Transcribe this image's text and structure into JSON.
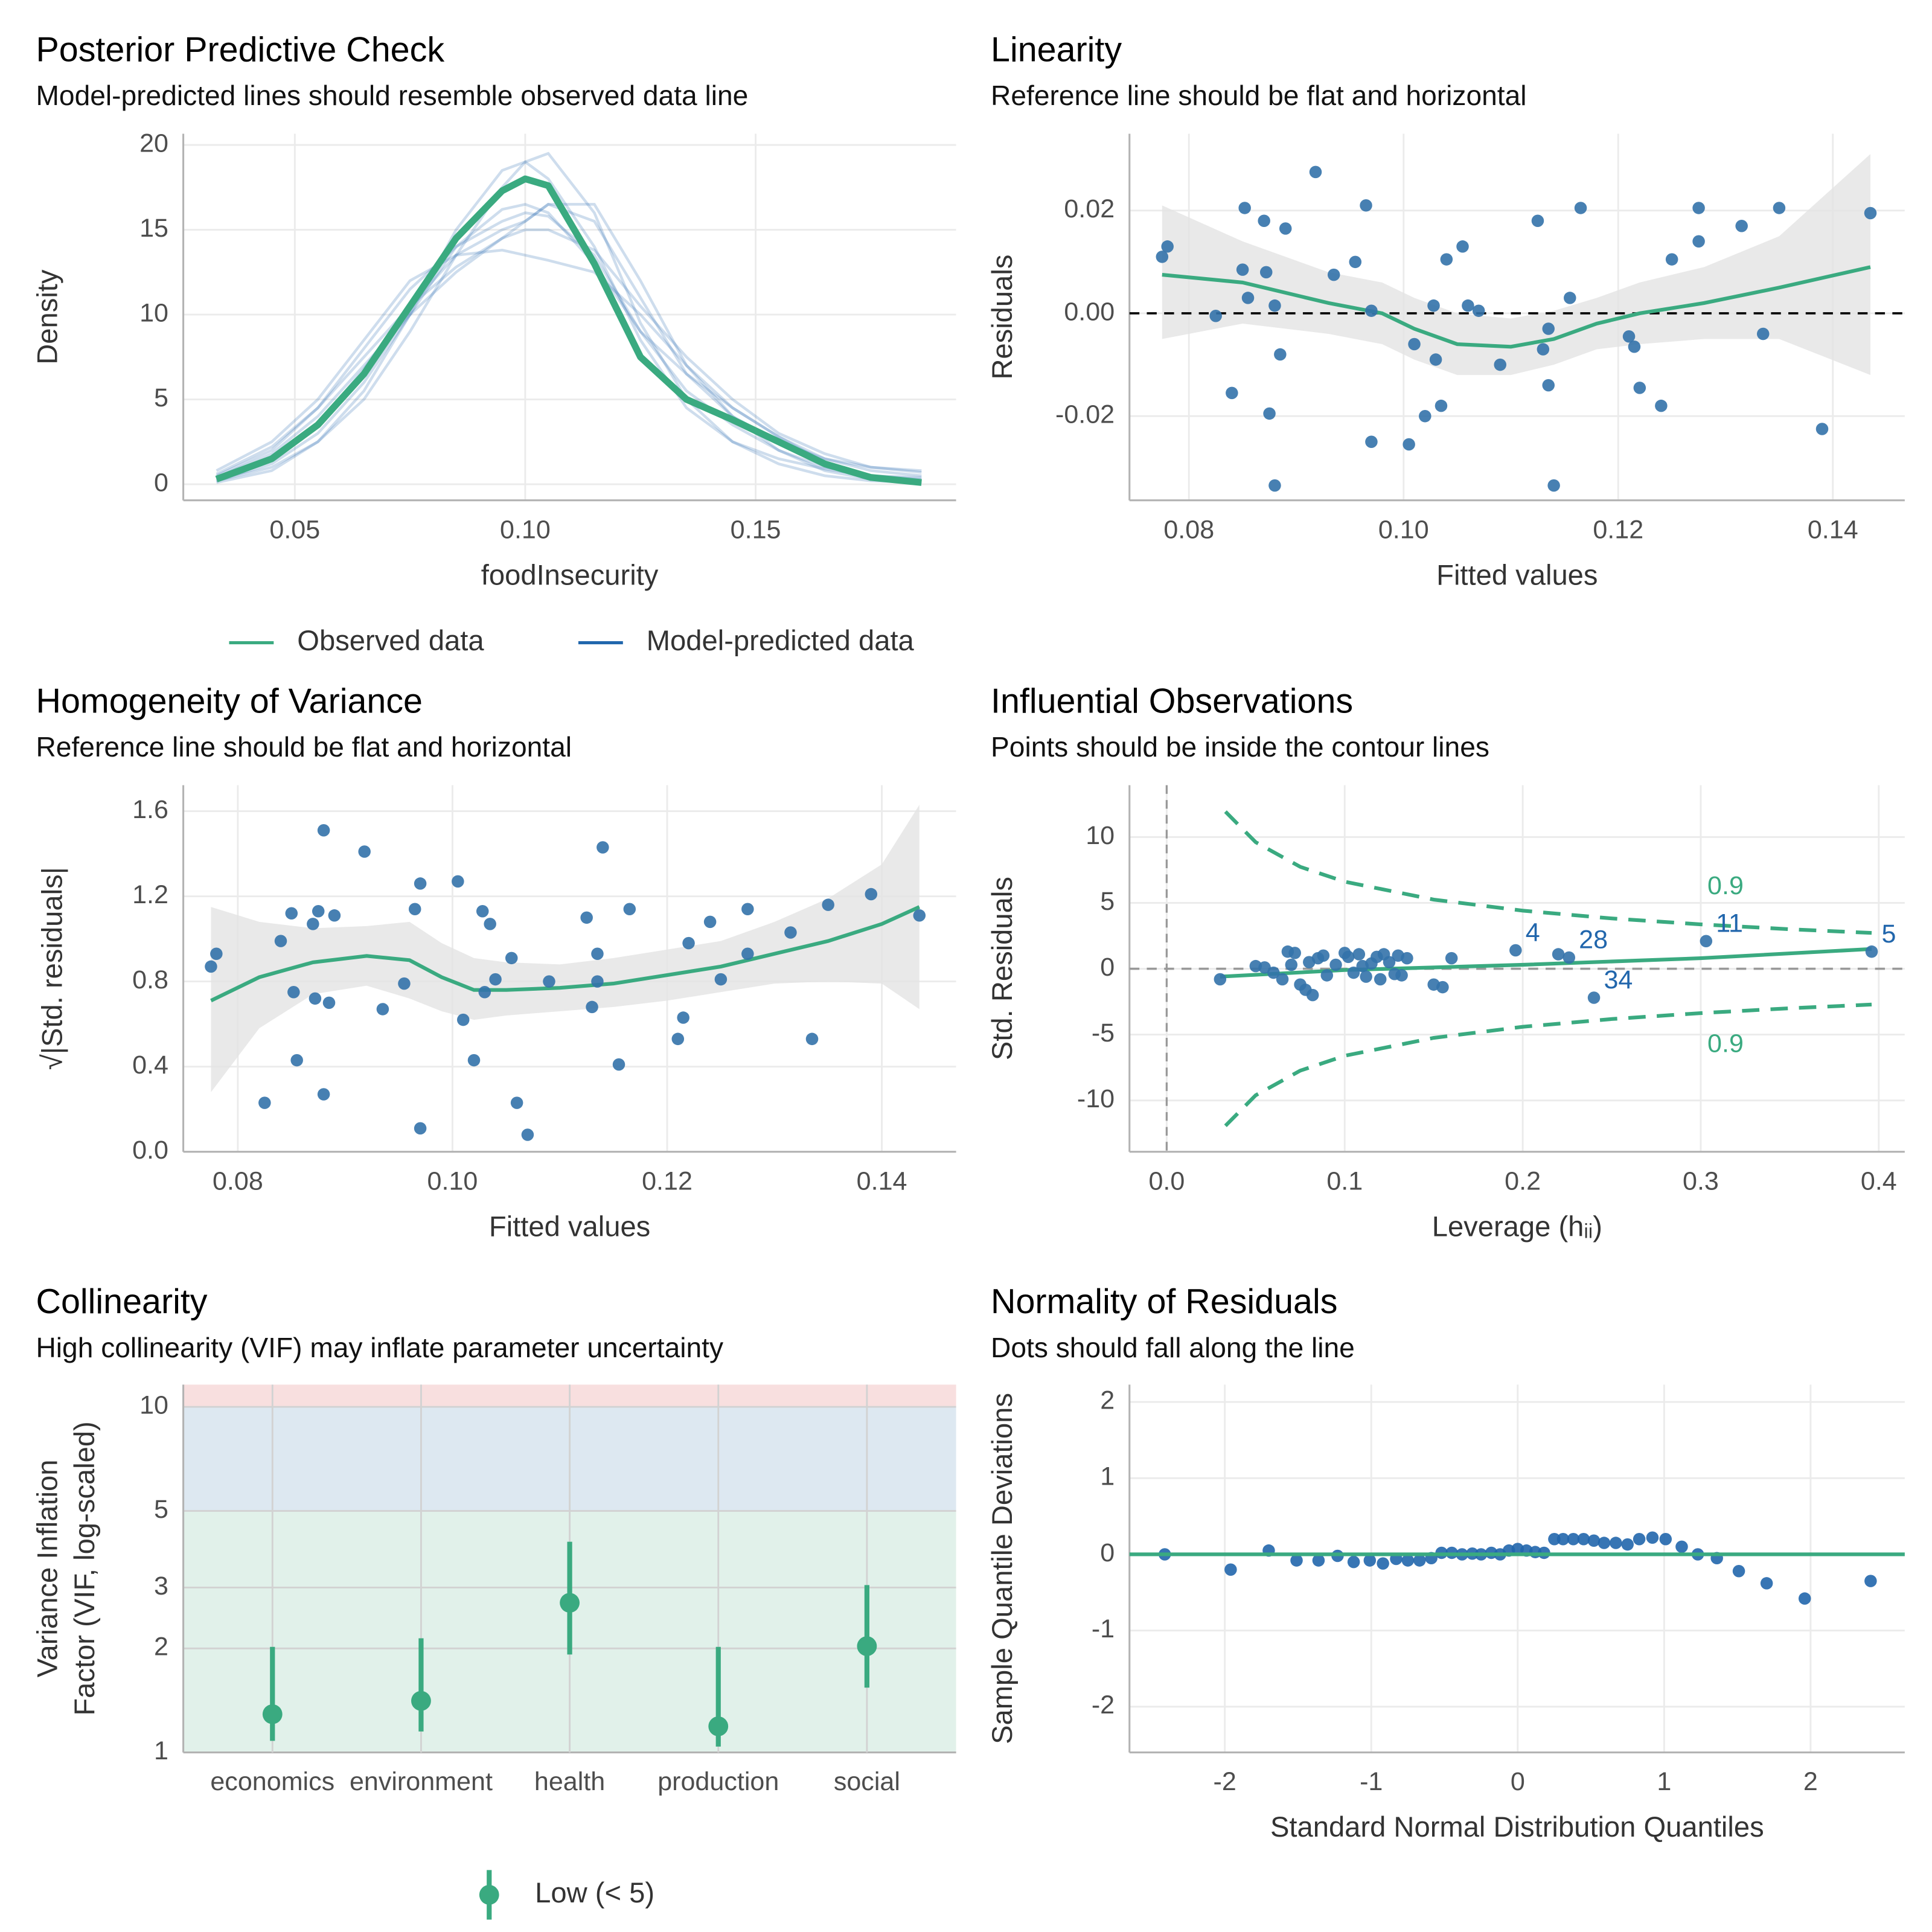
{
  "chart_data": [
    {
      "type": "density",
      "title": "Posterior Predictive Check",
      "subtitle": "Model-predicted lines should resemble observed data line",
      "xlabel": "foodInsecurity",
      "ylabel": "Density",
      "x": [
        0.033,
        0.045,
        0.055,
        0.065,
        0.075,
        0.085,
        0.095,
        0.1,
        0.105,
        0.115,
        0.125,
        0.135,
        0.145,
        0.155,
        0.165,
        0.175,
        0.186
      ],
      "series": [
        {
          "name": "Observed data",
          "color": "#3aaa80",
          "values": [
            0.3,
            1.5,
            3.5,
            6.5,
            10.5,
            14.5,
            17.3,
            18.0,
            17.6,
            13.0,
            7.5,
            5.0,
            3.8,
            2.5,
            1.2,
            0.4,
            0.1
          ]
        },
        {
          "name": "Model-predicted data",
          "color": "#2166ac",
          "draws": [
            [
              0.5,
              2,
              4.5,
              8,
              11.5,
              14,
              15.5,
              16,
              15.8,
              13.5,
              9,
              5.5,
              3.5,
              2,
              1,
              0.5,
              0.3
            ],
            [
              0.2,
              1,
              2.5,
              5,
              9,
              13.5,
              17.5,
              19,
              19.5,
              16,
              9.5,
              5,
              2.5,
              1.2,
              0.5,
              0.2,
              0.1
            ],
            [
              0.8,
              2.5,
              5,
              8.5,
              12,
              13.5,
              13.8,
              13.5,
              13.2,
              12.5,
              10,
              7,
              4.5,
              2.8,
              1.5,
              0.8,
              0.5
            ],
            [
              0.3,
              1.5,
              3.5,
              6.8,
              10.5,
              13.5,
              15,
              15.5,
              16.5,
              16.5,
              12,
              7,
              4,
              2,
              0.8,
              0.3,
              0.1
            ],
            [
              0.6,
              2.2,
              4.5,
              7.5,
              10.5,
              12.8,
              14.5,
              15,
              15,
              13.8,
              10.5,
              7.5,
              5,
              3,
              1.8,
              1,
              0.8
            ],
            [
              0.1,
              0.8,
              2.5,
              5.5,
              10,
              15,
              18.5,
              19,
              18,
              14,
              8.5,
              4.5,
              2.5,
              1.5,
              0.9,
              0.5,
              0.4
            ],
            [
              0.4,
              1.8,
              4,
              7,
              10,
              12.5,
              14.5,
              15.5,
              16.5,
              15.5,
              11,
              6.5,
              4,
              2.5,
              1.5,
              1,
              0.7
            ],
            [
              0.2,
              1.2,
              3,
              6,
              10,
              14,
              16.2,
              16.5,
              16,
              13,
              9,
              6.5,
              4.5,
              2.8,
              1.3,
              0.5,
              0.2
            ]
          ]
        }
      ],
      "xlim": [
        0.0258,
        0.1935
      ],
      "xticks": [
        0.05,
        {
          "value": 0.1,
          "label": "0.10"
        },
        0.15
      ],
      "ylim": [
        -0.95,
        20.66
      ],
      "yticks": [
        0,
        5,
        10,
        15,
        20
      ],
      "grid": true,
      "legend": "bottom"
    },
    {
      "type": "scatter_smooth",
      "title": "Linearity",
      "subtitle": "Reference line should be flat and horizontal",
      "xlabel": "Fitted values",
      "ylabel": "Residuals",
      "x": [
        0.0775,
        0.078,
        0.0825,
        0.084,
        0.085,
        0.0852,
        0.0855,
        0.087,
        0.0872,
        0.0875,
        0.088,
        0.088,
        0.0885,
        0.089,
        0.0918,
        0.0935,
        0.0955,
        0.0965,
        0.097,
        0.097,
        0.1005,
        0.101,
        0.102,
        0.1028,
        0.103,
        0.1035,
        0.104,
        0.1055,
        0.106,
        0.107,
        0.109,
        0.1125,
        0.113,
        0.1135,
        0.1135,
        0.114,
        0.1155,
        0.1165,
        0.121,
        0.1215,
        0.122,
        0.124,
        0.125,
        0.1275,
        0.1275,
        0.1315,
        0.1335,
        0.135,
        0.139,
        0.1435
      ],
      "values": [
        0.011,
        0.013,
        -0.0005,
        -0.0155,
        0.0085,
        0.0205,
        0.003,
        0.018,
        0.008,
        -0.0195,
        0.0015,
        -0.0335,
        -0.008,
        0.0165,
        0.0275,
        0.0075,
        0.01,
        0.021,
        0.0005,
        -0.025,
        -0.0255,
        -0.006,
        -0.02,
        0.0015,
        -0.009,
        -0.018,
        0.0105,
        0.013,
        0.0015,
        0.0005,
        -0.01,
        0.018,
        -0.007,
        -0.014,
        -0.003,
        -0.0335,
        0.003,
        0.0205,
        -0.0045,
        -0.0065,
        -0.0145,
        -0.018,
        0.0105,
        0.0205,
        0.014,
        0.017,
        -0.004,
        0.0205,
        -0.0225,
        0.0195
      ],
      "smooth_x": [
        0.0775,
        0.085,
        0.093,
        0.098,
        0.101,
        0.105,
        0.11,
        0.114,
        0.118,
        0.122,
        0.128,
        0.135,
        0.1435
      ],
      "smooth_values": [
        0.0075,
        0.006,
        0.002,
        0.0,
        -0.003,
        -0.006,
        -0.0065,
        -0.005,
        -0.002,
        0.0,
        0.002,
        0.005,
        0.009
      ],
      "smooth_upper": [
        0.021,
        0.014,
        0.008,
        0.006,
        0.003,
        0.0,
        -0.001,
        0.0005,
        0.003,
        0.006,
        0.009,
        0.015,
        0.031
      ],
      "smooth_lower": [
        -0.005,
        -0.002,
        -0.004,
        -0.006,
        -0.009,
        -0.012,
        -0.012,
        -0.01,
        -0.007,
        -0.006,
        -0.005,
        -0.005,
        -0.012
      ],
      "hline": 0,
      "hline_style": "dashed",
      "hline_color": "#000000",
      "point_color": "#3372aa",
      "line_color": "#3aaa80",
      "ribbon_color": "#e3e3e3",
      "xlim": [
        0.07446,
        0.1467
      ],
      "xticks": [
        0.08,
        {
          "value": 0.1,
          "label": "0.10"
        },
        0.12,
        0.14
      ],
      "ylim": [
        -0.03639,
        0.03494
      ],
      "yticks": [
        -0.02,
        {
          "value": 0,
          "label": "0.00"
        },
        0.02
      ],
      "grid": true
    },
    {
      "type": "scatter_smooth",
      "title": "Homogeneity of Variance",
      "subtitle": "Reference line should be flat and horizontal",
      "xlabel": "Fitted values",
      "ylabel": "√|Std. residuals|",
      "x": [
        0.0775,
        0.078,
        0.0825,
        0.084,
        0.085,
        0.0852,
        0.0855,
        0.087,
        0.0872,
        0.0875,
        0.088,
        0.088,
        0.0885,
        0.089,
        0.0918,
        0.0935,
        0.0955,
        0.0965,
        0.097,
        0.097,
        0.1005,
        0.101,
        0.102,
        0.1028,
        0.103,
        0.1035,
        0.104,
        0.1055,
        0.106,
        0.107,
        0.109,
        0.1125,
        0.113,
        0.1135,
        0.1135,
        0.114,
        0.1155,
        0.1165,
        0.121,
        0.1215,
        0.122,
        0.124,
        0.125,
        0.1275,
        0.1275,
        0.1315,
        0.1335,
        0.135,
        0.139,
        0.1435
      ],
      "values": [
        0.87,
        0.93,
        0.23,
        0.99,
        1.12,
        0.75,
        0.43,
        1.07,
        0.72,
        1.13,
        0.27,
        1.51,
        0.7,
        1.11,
        1.41,
        0.67,
        0.79,
        1.14,
        0.11,
        1.26,
        1.27,
        0.62,
        0.43,
        1.13,
        0.75,
        1.07,
        0.81,
        0.91,
        0.23,
        0.08,
        0.8,
        1.1,
        0.68,
        0.93,
        0.8,
        1.43,
        0.41,
        1.14,
        0.53,
        0.63,
        0.98,
        1.08,
        0.81,
        1.14,
        0.93,
        1.03,
        0.53,
        1.16,
        1.21,
        1.11
      ],
      "smooth_x": [
        0.0775,
        0.082,
        0.087,
        0.092,
        0.096,
        0.099,
        0.102,
        0.105,
        0.11,
        0.115,
        0.12,
        0.125,
        0.13,
        0.135,
        0.14,
        0.1435
      ],
      "smooth_values": [
        0.71,
        0.82,
        0.89,
        0.92,
        0.9,
        0.82,
        0.76,
        0.76,
        0.77,
        0.79,
        0.83,
        0.87,
        0.93,
        0.99,
        1.07,
        1.15
      ],
      "smooth_upper": [
        1.15,
        1.08,
        1.05,
        1.06,
        1.08,
        0.98,
        0.91,
        0.89,
        0.88,
        0.91,
        0.95,
        0.99,
        1.08,
        1.19,
        1.35,
        1.63
      ],
      "smooth_lower": [
        0.28,
        0.58,
        0.74,
        0.78,
        0.72,
        0.66,
        0.62,
        0.64,
        0.66,
        0.68,
        0.71,
        0.75,
        0.79,
        0.8,
        0.79,
        0.67
      ],
      "point_color": "#3372aa",
      "line_color": "#3aaa80",
      "ribbon_color": "#e3e3e3",
      "xlim": [
        0.07492,
        0.14692
      ],
      "xticks": [
        0.08,
        {
          "value": 0.1,
          "label": "0.10"
        },
        0.12,
        0.14
      ],
      "ylim": [
        0,
        1.722
      ],
      "yticks": [
        {
          "value": 0,
          "label": "0.0"
        },
        0.4,
        0.8,
        1.2,
        1.6
      ],
      "grid": true
    },
    {
      "type": "leverage",
      "title": "Influential Observations",
      "subtitle": "Points should be inside the contour lines",
      "xlabel": "Leverage (hᵢᵢ)",
      "ylabel": "Std. Residuals",
      "x": [
        0.03,
        0.05,
        0.055,
        0.06,
        0.065,
        0.068,
        0.07,
        0.072,
        0.075,
        0.078,
        0.08,
        0.082,
        0.085,
        0.088,
        0.09,
        0.095,
        0.1,
        0.102,
        0.105,
        0.108,
        0.11,
        0.112,
        0.115,
        0.118,
        0.12,
        0.122,
        0.125,
        0.128,
        0.13,
        0.132,
        0.135,
        0.15,
        0.155,
        0.16,
        0.196,
        0.22,
        0.226,
        0.24,
        0.303,
        0.396
      ],
      "values": [
        -0.8,
        0.2,
        0.1,
        -0.3,
        -0.8,
        1.3,
        0.3,
        1.2,
        -1.2,
        -1.6,
        0.5,
        -2.0,
        0.8,
        1.0,
        -0.5,
        0.3,
        1.2,
        0.9,
        -0.3,
        1.1,
        0.2,
        -0.6,
        0.4,
        0.9,
        -0.8,
        1.1,
        0.5,
        -0.4,
        1.0,
        -0.5,
        0.8,
        -1.2,
        -1.4,
        0.8,
        1.4,
        1.1,
        0.85,
        -2.2,
        2.1,
        1.3
      ],
      "labels": [
        null,
        null,
        null,
        null,
        null,
        null,
        null,
        null,
        null,
        null,
        null,
        null,
        null,
        null,
        null,
        null,
        null,
        null,
        null,
        null,
        null,
        null,
        null,
        null,
        null,
        null,
        null,
        null,
        null,
        null,
        null,
        null,
        null,
        null,
        "4",
        null,
        "28",
        "34",
        "11",
        "5"
      ],
      "smooth_x": [
        0.03,
        0.1,
        0.2,
        0.3,
        0.396
      ],
      "smooth_values": [
        -0.6,
        -0.1,
        0.3,
        0.8,
        1.5
      ],
      "contour_x": [
        0.033,
        0.05,
        0.075,
        0.1,
        0.15,
        0.2,
        0.25,
        0.3,
        0.35,
        0.396
      ],
      "contours": [
        {
          "label": "0.9",
          "values": [
            11.93,
            9.61,
            7.74,
            6.61,
            5.25,
            4.41,
            3.82,
            3.37,
            3.0,
            2.72
          ]
        },
        {
          "label": "0.9",
          "values": [
            -11.93,
            -9.61,
            -7.74,
            -6.61,
            -5.25,
            -4.41,
            -3.82,
            -3.37,
            -3.0,
            -2.72
          ]
        }
      ],
      "hline": 0,
      "vline": 0,
      "hline_style": "dashed",
      "hline_color": "#999999",
      "point_color": "#3372aa",
      "line_color": "#3aaa80",
      "label_color": "#2166ac",
      "xlim": [
        -0.0209,
        0.4146
      ],
      "xticks": [
        {
          "value": 0,
          "label": "0.0"
        },
        0.1,
        0.2,
        0.3,
        0.4
      ],
      "ylim": [
        -13.9,
        13.94
      ],
      "yticks": [
        -10,
        -5,
        0,
        5,
        10
      ],
      "grid": true
    },
    {
      "type": "dot_errorbar",
      "title": "Collinearity",
      "subtitle": "High collinearity (VIF) may inflate parameter uncertainty",
      "ylabel": [
        "Variance Inflation",
        "Factor (VIF, log-scaled)"
      ],
      "categories": [
        "economics",
        "environment",
        "health",
        "production",
        "social"
      ],
      "values": [
        1.29,
        1.41,
        2.71,
        1.19,
        2.03
      ],
      "ci_low": [
        1.08,
        1.15,
        1.92,
        1.04,
        1.54
      ],
      "ci_high": [
        2.02,
        2.14,
        4.07,
        2.02,
        3.05
      ],
      "band_starts": [
        1,
        5,
        10
      ],
      "band_colors": [
        "#e1f1ea",
        "#dde8f1",
        "#f8dfdf"
      ],
      "color": "#3aaa80",
      "legend_label": "Low (< 5)",
      "legend": "bottom",
      "log_y": true,
      "ylim": [
        1,
        11.6
      ],
      "yticks": [
        1,
        2,
        3,
        5,
        10
      ],
      "grid": true
    },
    {
      "type": "qq",
      "title": "Normality of Residuals",
      "subtitle": "Dots should fall along the line",
      "xlabel": "Standard Normal Distribution Quantiles",
      "ylabel": "Sample Quantile Deviations",
      "x": [
        -2.41,
        -1.96,
        -1.7,
        -1.51,
        -1.36,
        -1.23,
        -1.12,
        -1.01,
        -0.92,
        -0.83,
        -0.75,
        -0.67,
        -0.59,
        -0.52,
        -0.45,
        -0.38,
        -0.31,
        -0.25,
        -0.18,
        -0.12,
        -0.06,
        0,
        0.06,
        0.12,
        0.18,
        0.25,
        0.31,
        0.38,
        0.45,
        0.52,
        0.59,
        0.67,
        0.75,
        0.83,
        0.92,
        1.01,
        1.12,
        1.23,
        1.36,
        1.51,
        1.7,
        1.96,
        2.41
      ],
      "values": [
        0.0,
        -0.2,
        0.05,
        -0.08,
        -0.08,
        -0.02,
        -0.1,
        -0.08,
        -0.12,
        -0.06,
        -0.08,
        -0.08,
        -0.05,
        0.02,
        0.02,
        0.0,
        0.01,
        0.0,
        0.02,
        0.0,
        0.05,
        0.07,
        0.05,
        0.03,
        0.02,
        0.2,
        0.2,
        0.2,
        0.2,
        0.18,
        0.15,
        0.15,
        0.13,
        0.2,
        0.22,
        0.2,
        0.1,
        0.0,
        -0.05,
        -0.22,
        -0.38,
        -0.58,
        -0.35
      ],
      "hline": 0,
      "hline_style": "solid",
      "hline_color": "#3aaa80",
      "point_color": "#2166ac",
      "xlim": [
        -2.651,
        2.643
      ],
      "xticks": [
        -2,
        -1,
        0,
        1,
        2
      ],
      "ylim": [
        -2.6,
        2.228
      ],
      "yticks": [
        -2,
        -1,
        0,
        1,
        2
      ],
      "grid": true
    }
  ]
}
